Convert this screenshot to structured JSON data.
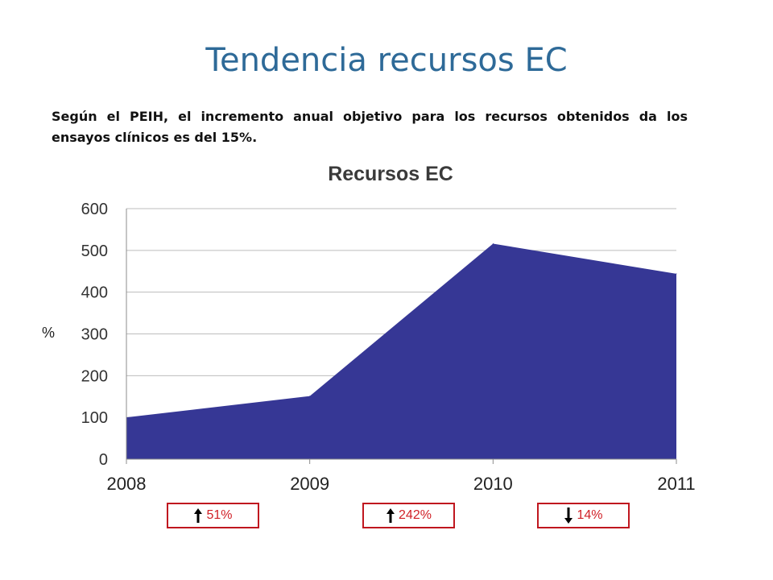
{
  "slide": {
    "title": "Tendencia recursos EC",
    "intro": "Según el PEIH, el incremento anual objetivo para los recursos obtenidos da los ensayos clínicos es del 15%."
  },
  "chart_data": {
    "type": "area",
    "title": "Recursos EC",
    "xlabel": "",
    "ylabel": "%",
    "categories": [
      "2008",
      "2009",
      "2010",
      "2011"
    ],
    "values": [
      100,
      151,
      516,
      444
    ],
    "ylim": [
      0,
      600
    ],
    "yticks": [
      0,
      100,
      200,
      300,
      400,
      500,
      600
    ],
    "grid": true,
    "color": "#363795"
  },
  "changes": [
    {
      "direction": "up",
      "label": "51%",
      "icon": "arrow-up-icon"
    },
    {
      "direction": "up",
      "label": "242%",
      "icon": "arrow-up-icon"
    },
    {
      "direction": "down",
      "label": "14%",
      "icon": "arrow-down-icon"
    }
  ],
  "colors": {
    "title": "#2e6a98",
    "area": "#363795",
    "badge_border": "#c0171f",
    "badge_text": "#d02027"
  }
}
